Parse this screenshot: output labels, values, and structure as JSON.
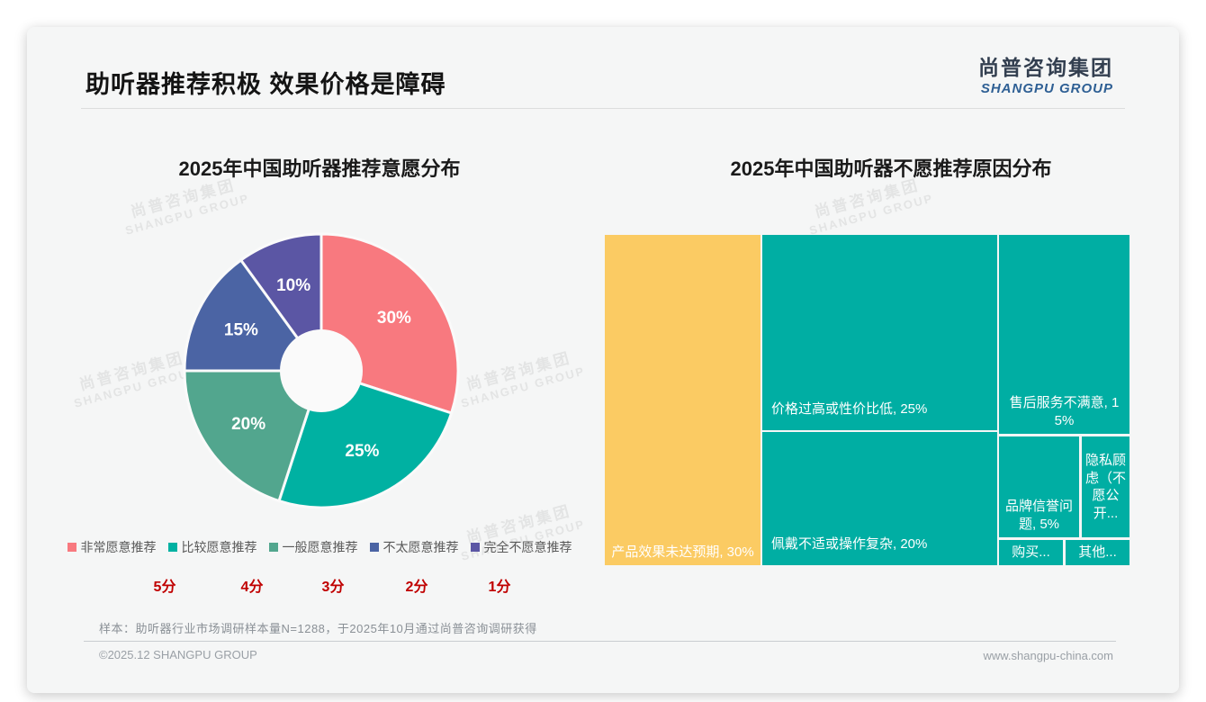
{
  "page": {
    "title": "助听器推荐积极 效果价格是障碍",
    "logo": {
      "cn": "尚普咨询集团",
      "en": "SHANGPU GROUP"
    },
    "watermark": {
      "cn": "尚普咨询集团",
      "en": "SHANGPU GROUP"
    }
  },
  "chart_data": [
    {
      "type": "pie",
      "subtype": "donut",
      "title": "2025年中国助听器推荐意愿分布",
      "categories": [
        "非常愿意推荐",
        "比较愿意推荐",
        "一般愿意推荐",
        "不太愿意推荐",
        "完全不愿意推荐"
      ],
      "values": [
        30,
        25,
        20,
        15,
        10
      ],
      "data_labels": [
        "30%",
        "25%",
        "20%",
        "15%",
        "10%"
      ],
      "score_row": [
        "5分",
        "4分",
        "3分",
        "2分",
        "1分"
      ],
      "colors": [
        "#F8797F",
        "#00B1A2",
        "#52A68E",
        "#4B64A4",
        "#5B56A4"
      ],
      "score_color": "#C00000",
      "legend_position": "bottom",
      "start_angle_deg": 0,
      "direction": "clockwise"
    },
    {
      "type": "treemap",
      "title": "2025年中国助听器不愿推荐原因分布",
      "items": [
        {
          "name": "产品效果未达预期",
          "value": 30,
          "label": "产品效果未达预期, 30%",
          "color": "#FBCB63"
        },
        {
          "name": "价格过高或性价比低",
          "value": 25,
          "label": "价格过高或性价比低, 25%",
          "color": "#00AEA3"
        },
        {
          "name": "佩戴不适或操作复杂",
          "value": 20,
          "label": "佩戴不适或操作复杂, 20%",
          "color": "#00AEA3"
        },
        {
          "name": "售后服务不满意",
          "value": 15,
          "label": "售后服务不满意, 15%",
          "color": "#00AEA3"
        },
        {
          "name": "品牌信誉问题",
          "value": 5,
          "label": "品牌信誉问题, 5%",
          "color": "#00AEA3"
        },
        {
          "name": "隐私顾虑（不愿公开）",
          "label": "隐私顾虑（不愿公开...",
          "color": "#00AEA3"
        },
        {
          "name": "购买",
          "label": "购买...",
          "color": "#00AEA3"
        },
        {
          "name": "其他",
          "label": "其他...",
          "color": "#00AEA3"
        }
      ]
    }
  ],
  "footer": {
    "sample_note": "样本：助听器行业市场调研样本量N=1288，于2025年10月通过尚普咨询调研获得",
    "copyright": "©2025.12 SHANGPU GROUP",
    "website": "www.shangpu-china.com"
  }
}
